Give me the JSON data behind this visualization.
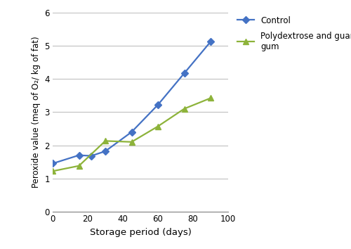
{
  "control_x": [
    0,
    15,
    22,
    30,
    45,
    60,
    75,
    90
  ],
  "control_y": [
    1.45,
    1.7,
    1.68,
    1.82,
    2.4,
    3.22,
    4.17,
    5.12
  ],
  "treatment_x": [
    0,
    15,
    30,
    45,
    60,
    75,
    90
  ],
  "treatment_y": [
    1.22,
    1.38,
    2.13,
    2.1,
    2.57,
    3.1,
    3.42
  ],
  "control_color": "#4472C4",
  "treatment_color": "#8DB33A",
  "control_label": "Control",
  "treatment_label": "Polydextrose and guar\ngum",
  "xlabel": "Storage period (days)",
  "ylabel": "Peroxide value (meq of O₂/ kg of fat)",
  "xlim": [
    0,
    100
  ],
  "ylim": [
    0,
    6
  ],
  "xticks": [
    0,
    20,
    40,
    60,
    80,
    100
  ],
  "yticks": [
    0,
    1,
    2,
    3,
    4,
    5,
    6
  ],
  "grid_color": "#C0C0C0",
  "background_color": "#FFFFFF",
  "spine_color": "#808080"
}
